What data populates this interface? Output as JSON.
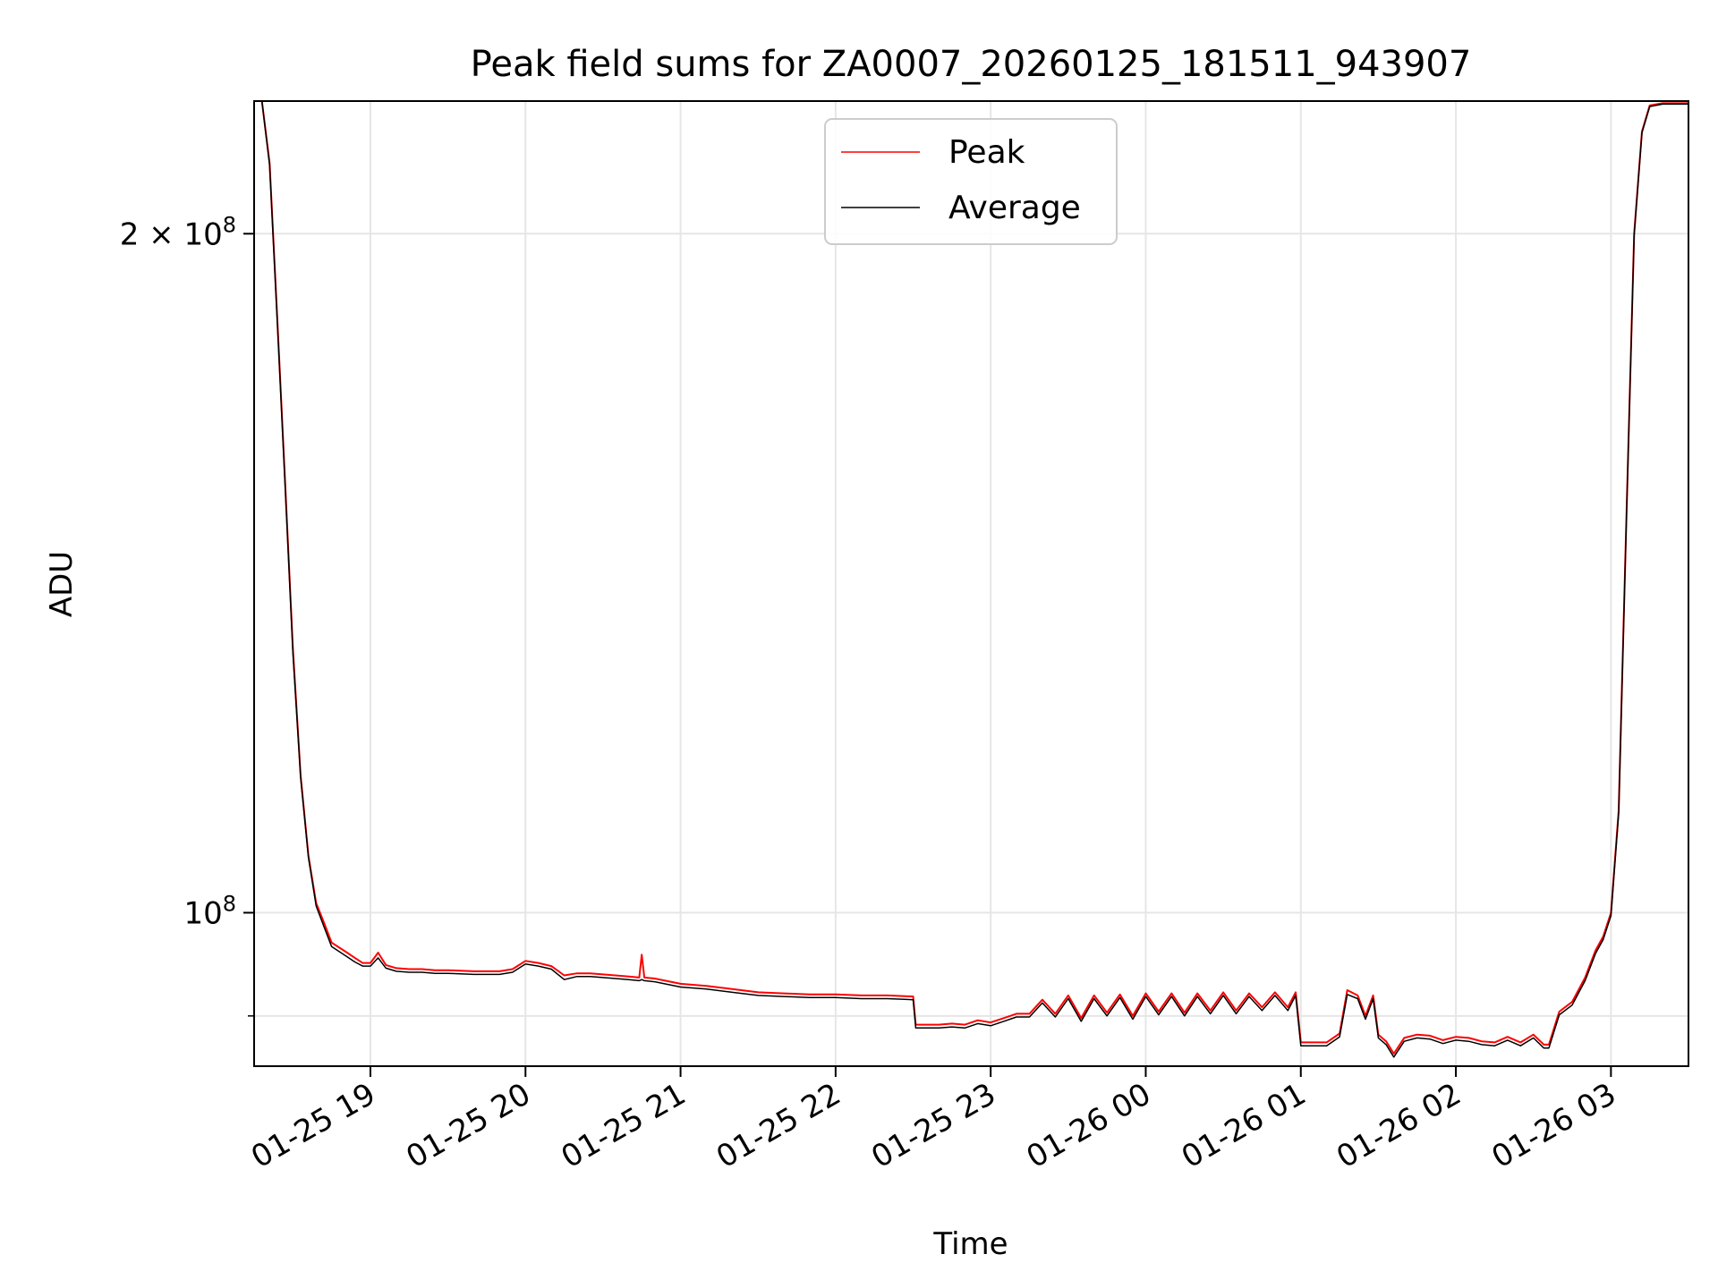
{
  "chart_data": {
    "type": "line",
    "title": "Peak field sums for ZA0007_20260125_181511_943907",
    "xlabel": "Time",
    "ylabel": "ADU",
    "y_scale": "log",
    "grid": true,
    "legend_position": "top-center",
    "xlim": [
      "2026-01-25 18:15",
      "2026-01-26 03:30"
    ],
    "ylim": [
      85500000,
      229000000
    ],
    "x_ticks": [
      {
        "value": "2026-01-25 19:00",
        "label": "01-25 19"
      },
      {
        "value": "2026-01-25 20:00",
        "label": "01-25 20"
      },
      {
        "value": "2026-01-25 21:00",
        "label": "01-25 21"
      },
      {
        "value": "2026-01-25 22:00",
        "label": "01-25 22"
      },
      {
        "value": "2026-01-25 23:00",
        "label": "01-25 23"
      },
      {
        "value": "2026-01-26 00:00",
        "label": "01-26 00"
      },
      {
        "value": "2026-01-26 01:00",
        "label": "01-26 01"
      },
      {
        "value": "2026-01-26 02:00",
        "label": "01-26 02"
      },
      {
        "value": "2026-01-26 03:00",
        "label": "01-26 03"
      }
    ],
    "y_ticks": [
      {
        "value": 100000000,
        "base": "10",
        "exp": "8"
      },
      {
        "value": 200000000,
        "base": "2 × 10",
        "exp": "8"
      }
    ],
    "y_minor_ticks": [
      90000000
    ],
    "series": [
      {
        "name": "Peak",
        "color": "#ff0000",
        "x": [
          "2026-01-25 18:15",
          "2026-01-25 18:18",
          "2026-01-25 18:21",
          "2026-01-25 18:24",
          "2026-01-25 18:27",
          "2026-01-25 18:30",
          "2026-01-25 18:33",
          "2026-01-25 18:36",
          "2026-01-25 18:39",
          "2026-01-25 18:42",
          "2026-01-25 18:45",
          "2026-01-25 18:48",
          "2026-01-25 18:51",
          "2026-01-25 18:54",
          "2026-01-25 18:57",
          "2026-01-25 19:00",
          "2026-01-25 19:03",
          "2026-01-25 19:06",
          "2026-01-25 19:10",
          "2026-01-25 19:15",
          "2026-01-25 19:20",
          "2026-01-25 19:25",
          "2026-01-25 19:30",
          "2026-01-25 19:40",
          "2026-01-25 19:50",
          "2026-01-25 19:55",
          "2026-01-25 20:00",
          "2026-01-25 20:05",
          "2026-01-25 20:10",
          "2026-01-25 20:15",
          "2026-01-25 20:20",
          "2026-01-25 20:25",
          "2026-01-25 20:30",
          "2026-01-25 20:40",
          "2026-01-25 20:44",
          "2026-01-25 20:45",
          "2026-01-25 20:46",
          "2026-01-25 20:50",
          "2026-01-25 21:00",
          "2026-01-25 21:10",
          "2026-01-25 21:20",
          "2026-01-25 21:30",
          "2026-01-25 21:40",
          "2026-01-25 21:50",
          "2026-01-25 22:00",
          "2026-01-25 22:10",
          "2026-01-25 22:20",
          "2026-01-25 22:30",
          "2026-01-25 22:31",
          "2026-01-25 22:40",
          "2026-01-25 22:45",
          "2026-01-25 22:50",
          "2026-01-25 22:55",
          "2026-01-25 23:00",
          "2026-01-25 23:05",
          "2026-01-25 23:10",
          "2026-01-25 23:15",
          "2026-01-25 23:20",
          "2026-01-25 23:25",
          "2026-01-25 23:30",
          "2026-01-25 23:35",
          "2026-01-25 23:40",
          "2026-01-25 23:45",
          "2026-01-25 23:50",
          "2026-01-25 23:55",
          "2026-01-26 00:00",
          "2026-01-26 00:05",
          "2026-01-26 00:10",
          "2026-01-26 00:15",
          "2026-01-26 00:20",
          "2026-01-26 00:25",
          "2026-01-26 00:30",
          "2026-01-26 00:35",
          "2026-01-26 00:40",
          "2026-01-26 00:45",
          "2026-01-26 00:50",
          "2026-01-26 00:55",
          "2026-01-26 00:58",
          "2026-01-26 01:00",
          "2026-01-26 01:10",
          "2026-01-26 01:15",
          "2026-01-26 01:18",
          "2026-01-26 01:22",
          "2026-01-26 01:25",
          "2026-01-26 01:28",
          "2026-01-26 01:30",
          "2026-01-26 01:33",
          "2026-01-26 01:36",
          "2026-01-26 01:40",
          "2026-01-26 01:45",
          "2026-01-26 01:50",
          "2026-01-26 01:55",
          "2026-01-26 02:00",
          "2026-01-26 02:05",
          "2026-01-26 02:10",
          "2026-01-26 02:15",
          "2026-01-26 02:20",
          "2026-01-26 02:25",
          "2026-01-26 02:30",
          "2026-01-26 02:34",
          "2026-01-26 02:36",
          "2026-01-26 02:40",
          "2026-01-26 02:45",
          "2026-01-26 02:50",
          "2026-01-26 02:54",
          "2026-01-26 02:57",
          "2026-01-26 03:00",
          "2026-01-26 03:03",
          "2026-01-26 03:06",
          "2026-01-26 03:09",
          "2026-01-26 03:12",
          "2026-01-26 03:15",
          "2026-01-26 03:20",
          "2026-01-26 03:25",
          "2026-01-26 03:30"
        ],
        "y": [
          229000000,
          229000000,
          215000000,
          183000000,
          155000000,
          131000000,
          115000000,
          106000000,
          101000000,
          99000000,
          97000000,
          96500000,
          96000000,
          95500000,
          95000000,
          95000000,
          96000000,
          94800000,
          94500000,
          94400000,
          94400000,
          94300000,
          94300000,
          94200000,
          94200000,
          94400000,
          95200000,
          95000000,
          94700000,
          93800000,
          94000000,
          94000000,
          93900000,
          93700000,
          93600000,
          95800000,
          93600000,
          93500000,
          93000000,
          92800000,
          92500000,
          92200000,
          92100000,
          92000000,
          92000000,
          91900000,
          91900000,
          91800000,
          89200000,
          89200000,
          89300000,
          89200000,
          89600000,
          89400000,
          89800000,
          90200000,
          90200000,
          91500000,
          90200000,
          91900000,
          89800000,
          91900000,
          90300000,
          92000000,
          90000000,
          92100000,
          90400000,
          92100000,
          90300000,
          92100000,
          90500000,
          92200000,
          90500000,
          92100000,
          90800000,
          92200000,
          90800000,
          92200000,
          87600000,
          87600000,
          88400000,
          92400000,
          91900000,
          90000000,
          91900000,
          88300000,
          87700000,
          86600000,
          88000000,
          88300000,
          88200000,
          87800000,
          88100000,
          88000000,
          87700000,
          87600000,
          88100000,
          87600000,
          88300000,
          87400000,
          87400000,
          90400000,
          91300000,
          93600000,
          96200000,
          97600000,
          100000000,
          111000000,
          150000000,
          200000000,
          222000000,
          228000000,
          228500000,
          228500000,
          228500000
        ]
      },
      {
        "name": "Average",
        "color": "#000000",
        "x": [
          "2026-01-25 18:15",
          "2026-01-25 18:18",
          "2026-01-25 18:21",
          "2026-01-25 18:24",
          "2026-01-25 18:27",
          "2026-01-25 18:30",
          "2026-01-25 18:33",
          "2026-01-25 18:36",
          "2026-01-25 18:39",
          "2026-01-25 18:42",
          "2026-01-25 18:45",
          "2026-01-25 18:48",
          "2026-01-25 18:51",
          "2026-01-25 18:54",
          "2026-01-25 18:57",
          "2026-01-25 19:00",
          "2026-01-25 19:03",
          "2026-01-25 19:06",
          "2026-01-25 19:10",
          "2026-01-25 19:15",
          "2026-01-25 19:20",
          "2026-01-25 19:25",
          "2026-01-25 19:30",
          "2026-01-25 19:40",
          "2026-01-25 19:50",
          "2026-01-25 19:55",
          "2026-01-25 20:00",
          "2026-01-25 20:05",
          "2026-01-25 20:10",
          "2026-01-25 20:15",
          "2026-01-25 20:20",
          "2026-01-25 20:25",
          "2026-01-25 20:30",
          "2026-01-25 20:40",
          "2026-01-25 20:44",
          "2026-01-25 20:45",
          "2026-01-25 20:46",
          "2026-01-25 20:50",
          "2026-01-25 21:00",
          "2026-01-25 21:10",
          "2026-01-25 21:20",
          "2026-01-25 21:30",
          "2026-01-25 21:40",
          "2026-01-25 21:50",
          "2026-01-25 22:00",
          "2026-01-25 22:10",
          "2026-01-25 22:20",
          "2026-01-25 22:30",
          "2026-01-25 22:31",
          "2026-01-25 22:40",
          "2026-01-25 22:45",
          "2026-01-25 22:50",
          "2026-01-25 22:55",
          "2026-01-25 23:00",
          "2026-01-25 23:05",
          "2026-01-25 23:10",
          "2026-01-25 23:15",
          "2026-01-25 23:20",
          "2026-01-25 23:25",
          "2026-01-25 23:30",
          "2026-01-25 23:35",
          "2026-01-25 23:40",
          "2026-01-25 23:45",
          "2026-01-25 23:50",
          "2026-01-25 23:55",
          "2026-01-26 00:00",
          "2026-01-26 00:05",
          "2026-01-26 00:10",
          "2026-01-26 00:15",
          "2026-01-26 00:20",
          "2026-01-26 00:25",
          "2026-01-26 00:30",
          "2026-01-26 00:35",
          "2026-01-26 00:40",
          "2026-01-26 00:45",
          "2026-01-26 00:50",
          "2026-01-26 00:55",
          "2026-01-26 00:58",
          "2026-01-26 01:00",
          "2026-01-26 01:10",
          "2026-01-26 01:15",
          "2026-01-26 01:18",
          "2026-01-26 01:22",
          "2026-01-26 01:25",
          "2026-01-26 01:28",
          "2026-01-26 01:30",
          "2026-01-26 01:33",
          "2026-01-26 01:36",
          "2026-01-26 01:40",
          "2026-01-26 01:45",
          "2026-01-26 01:50",
          "2026-01-26 01:55",
          "2026-01-26 02:00",
          "2026-01-26 02:05",
          "2026-01-26 02:10",
          "2026-01-26 02:15",
          "2026-01-26 02:20",
          "2026-01-26 02:25",
          "2026-01-26 02:30",
          "2026-01-26 02:34",
          "2026-01-26 02:36",
          "2026-01-26 02:40",
          "2026-01-26 02:45",
          "2026-01-26 02:50",
          "2026-01-26 02:54",
          "2026-01-26 02:57",
          "2026-01-26 03:00",
          "2026-01-26 03:03",
          "2026-01-26 03:06",
          "2026-01-26 03:09",
          "2026-01-26 03:12",
          "2026-01-26 03:15",
          "2026-01-26 03:20",
          "2026-01-26 03:25",
          "2026-01-26 03:30"
        ],
        "y": [
          229000000,
          229000000,
          214500000,
          182500000,
          154500000,
          130500000,
          114800000,
          105800000,
          100700000,
          98600000,
          96600000,
          96100000,
          95600000,
          95100000,
          94700000,
          94700000,
          95500000,
          94500000,
          94200000,
          94100000,
          94100000,
          94000000,
          94000000,
          93900000,
          93900000,
          94100000,
          94900000,
          94700000,
          94400000,
          93400000,
          93700000,
          93700000,
          93600000,
          93400000,
          93300000,
          93400000,
          93300000,
          93200000,
          92700000,
          92500000,
          92200000,
          91900000,
          91800000,
          91700000,
          91700000,
          91600000,
          91600000,
          91500000,
          88900000,
          88900000,
          89000000,
          88900000,
          89300000,
          89100000,
          89500000,
          89900000,
          89900000,
          91200000,
          89900000,
          91600000,
          89500000,
          91600000,
          90000000,
          91700000,
          89700000,
          91800000,
          90100000,
          91800000,
          90000000,
          91800000,
          90200000,
          91900000,
          90200000,
          91800000,
          90500000,
          91900000,
          90500000,
          91900000,
          87300000,
          87300000,
          88100000,
          92000000,
          91600000,
          89700000,
          91600000,
          88000000,
          87400000,
          86300000,
          87700000,
          88000000,
          87900000,
          87500000,
          87800000,
          87700000,
          87400000,
          87300000,
          87800000,
          87300000,
          88000000,
          87100000,
          87100000,
          90100000,
          91000000,
          93300000,
          95900000,
          97300000,
          99700000,
          110700000,
          149700000,
          199700000,
          221700000,
          227700000,
          228300000,
          228300000,
          228300000
        ]
      }
    ]
  }
}
